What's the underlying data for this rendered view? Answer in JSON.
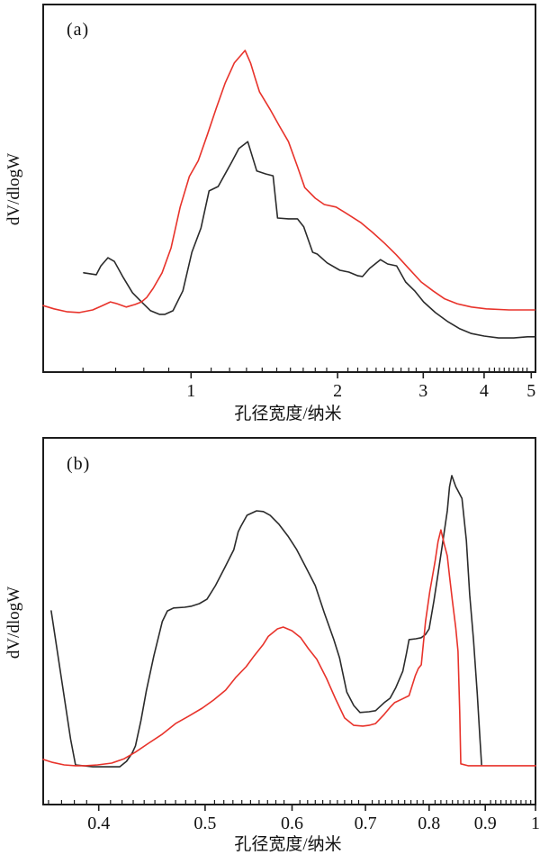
{
  "figure": {
    "background": "#ffffff",
    "frame_color": "#1c1c1c",
    "panels": [
      {
        "tag": "(a)",
        "ylabel": "dV/dlogW",
        "xlabel": "孔径宽度/纳米"
      },
      {
        "tag": "(b)",
        "ylabel": "dV/dlogW",
        "xlabel": "孔径宽度/纳米"
      }
    ]
  },
  "chart_data": [
    {
      "type": "line",
      "panel": "a",
      "title": "",
      "xlabel": "孔径宽度/纳米",
      "ylabel": "dV/dlogW",
      "x_scale": "log",
      "xlim": [
        0.497,
        5.1
      ],
      "ylim": [
        0,
        1
      ],
      "y_axis_note": "no numeric y ticks; values are fraction of panel height",
      "grid": false,
      "legend": "none",
      "x_major_ticks": [
        {
          "v": 1,
          "label": "1"
        },
        {
          "v": 2,
          "label": "2"
        },
        {
          "v": 3,
          "label": "3"
        },
        {
          "v": 4,
          "label": "4"
        },
        {
          "v": 5,
          "label": "5"
        }
      ],
      "x_minor_tick_ranges": [
        {
          "from": 0.6,
          "to": 0.9,
          "step": 0.1
        },
        {
          "from": 1.1,
          "to": 1.9,
          "step": 0.1
        },
        {
          "from": 2.1,
          "to": 2.9,
          "step": 0.1
        },
        {
          "from": 3.1,
          "to": 3.9,
          "step": 0.1
        },
        {
          "from": 4.1,
          "to": 4.9,
          "step": 0.1
        }
      ],
      "series": [
        {
          "name": "black-curve",
          "color": "#2b2b2b",
          "points": [
            [
              0.602,
              0.27
            ],
            [
              0.639,
              0.265
            ],
            [
              0.653,
              0.289
            ],
            [
              0.675,
              0.311
            ],
            [
              0.696,
              0.301
            ],
            [
              0.726,
              0.257
            ],
            [
              0.758,
              0.216
            ],
            [
              0.791,
              0.191
            ],
            [
              0.826,
              0.167
            ],
            [
              0.861,
              0.157
            ],
            [
              0.884,
              0.157
            ],
            [
              0.918,
              0.167
            ],
            [
              0.962,
              0.221
            ],
            [
              1.004,
              0.326
            ],
            [
              1.048,
              0.392
            ],
            [
              1.089,
              0.493
            ],
            [
              1.137,
              0.505
            ],
            [
              1.212,
              0.571
            ],
            [
              1.254,
              0.608
            ],
            [
              1.308,
              0.627
            ],
            [
              1.365,
              0.547
            ],
            [
              1.425,
              0.539
            ],
            [
              1.474,
              0.534
            ],
            [
              1.506,
              0.419
            ],
            [
              1.585,
              0.417
            ],
            [
              1.654,
              0.417
            ],
            [
              1.704,
              0.395
            ],
            [
              1.778,
              0.326
            ],
            [
              1.817,
              0.321
            ],
            [
              1.904,
              0.297
            ],
            [
              2.022,
              0.277
            ],
            [
              2.109,
              0.272
            ],
            [
              2.201,
              0.262
            ],
            [
              2.25,
              0.26
            ],
            [
              2.327,
              0.282
            ],
            [
              2.449,
              0.306
            ],
            [
              2.534,
              0.294
            ],
            [
              2.644,
              0.289
            ],
            [
              2.759,
              0.245
            ],
            [
              2.879,
              0.221
            ],
            [
              3.005,
              0.191
            ],
            [
              3.176,
              0.162
            ],
            [
              3.371,
              0.137
            ],
            [
              3.564,
              0.118
            ],
            [
              3.766,
              0.105
            ],
            [
              4.0,
              0.098
            ],
            [
              4.281,
              0.093
            ],
            [
              4.6,
              0.093
            ],
            [
              4.91,
              0.096
            ],
            [
              5.08,
              0.096
            ]
          ]
        },
        {
          "name": "red-curve",
          "color": "#e8332b",
          "points": [
            [
              0.497,
              0.181
            ],
            [
              0.523,
              0.172
            ],
            [
              0.557,
              0.164
            ],
            [
              0.59,
              0.162
            ],
            [
              0.628,
              0.169
            ],
            [
              0.653,
              0.179
            ],
            [
              0.683,
              0.191
            ],
            [
              0.705,
              0.186
            ],
            [
              0.736,
              0.177
            ],
            [
              0.768,
              0.184
            ],
            [
              0.791,
              0.191
            ],
            [
              0.811,
              0.203
            ],
            [
              0.836,
              0.228
            ],
            [
              0.872,
              0.27
            ],
            [
              0.91,
              0.338
            ],
            [
              0.95,
              0.449
            ],
            [
              0.992,
              0.532
            ],
            [
              1.035,
              0.575
            ],
            [
              1.08,
              0.645
            ],
            [
              1.127,
              0.718
            ],
            [
              1.176,
              0.787
            ],
            [
              1.227,
              0.841
            ],
            [
              1.291,
              0.875
            ],
            [
              1.325,
              0.841
            ],
            [
              1.355,
              0.799
            ],
            [
              1.383,
              0.762
            ],
            [
              1.456,
              0.713
            ],
            [
              1.519,
              0.669
            ],
            [
              1.585,
              0.627
            ],
            [
              1.654,
              0.559
            ],
            [
              1.712,
              0.502
            ],
            [
              1.8,
              0.473
            ],
            [
              1.878,
              0.456
            ],
            [
              1.986,
              0.449
            ],
            [
              2.09,
              0.431
            ],
            [
              2.23,
              0.407
            ],
            [
              2.36,
              0.38
            ],
            [
              2.5,
              0.35
            ],
            [
              2.64,
              0.319
            ],
            [
              2.8,
              0.282
            ],
            [
              2.97,
              0.245
            ],
            [
              3.14,
              0.221
            ],
            [
              3.32,
              0.199
            ],
            [
              3.52,
              0.186
            ],
            [
              3.77,
              0.177
            ],
            [
              4.04,
              0.172
            ],
            [
              4.5,
              0.169
            ],
            [
              5.08,
              0.169
            ]
          ]
        }
      ]
    },
    {
      "type": "line",
      "panel": "b",
      "title": "",
      "xlabel": "孔径宽度/纳米",
      "ylabel": "dV/dlogW",
      "x_scale": "log",
      "xlim": [
        0.356,
        1.0
      ],
      "ylim": [
        0,
        1
      ],
      "y_axis_note": "no numeric y ticks; values are fraction of panel height",
      "grid": false,
      "legend": "none",
      "x_major_ticks": [
        {
          "v": 0.4,
          "label": "0.4"
        },
        {
          "v": 0.5,
          "label": "0.5"
        },
        {
          "v": 0.6,
          "label": "0.6"
        },
        {
          "v": 0.7,
          "label": "0.7"
        },
        {
          "v": 0.8,
          "label": "0.8"
        },
        {
          "v": 0.9,
          "label": "0.9"
        },
        {
          "v": 1.0,
          "label": "1"
        }
      ],
      "x_minor_tick_ranges": [
        {
          "from": 0.36,
          "to": 0.39,
          "step": 0.01
        },
        {
          "from": 0.41,
          "to": 0.49,
          "step": 0.01
        },
        {
          "from": 0.51,
          "to": 0.59,
          "step": 0.01
        },
        {
          "from": 0.61,
          "to": 0.69,
          "step": 0.01
        },
        {
          "from": 0.71,
          "to": 0.79,
          "step": 0.01
        },
        {
          "from": 0.81,
          "to": 0.89,
          "step": 0.01
        },
        {
          "from": 0.91,
          "to": 0.99,
          "step": 0.01
        }
      ],
      "series": [
        {
          "name": "black-curve",
          "color": "#2b2b2b",
          "points": [
            [
              0.362,
              0.528
            ],
            [
              0.377,
              0.179
            ],
            [
              0.381,
              0.108
            ],
            [
              0.395,
              0.103
            ],
            [
              0.418,
              0.103
            ],
            [
              0.424,
              0.118
            ],
            [
              0.429,
              0.14
            ],
            [
              0.432,
              0.16
            ],
            [
              0.437,
              0.229
            ],
            [
              0.442,
              0.31
            ],
            [
              0.449,
              0.405
            ],
            [
              0.457,
              0.499
            ],
            [
              0.462,
              0.528
            ],
            [
              0.468,
              0.536
            ],
            [
              0.479,
              0.538
            ],
            [
              0.486,
              0.541
            ],
            [
              0.494,
              0.548
            ],
            [
              0.502,
              0.56
            ],
            [
              0.511,
              0.597
            ],
            [
              0.521,
              0.646
            ],
            [
              0.531,
              0.695
            ],
            [
              0.536,
              0.744
            ],
            [
              0.539,
              0.759
            ],
            [
              0.546,
              0.789
            ],
            [
              0.557,
              0.801
            ],
            [
              0.565,
              0.799
            ],
            [
              0.573,
              0.789
            ],
            [
              0.584,
              0.764
            ],
            [
              0.595,
              0.732
            ],
            [
              0.606,
              0.695
            ],
            [
              0.618,
              0.646
            ],
            [
              0.63,
              0.597
            ],
            [
              0.642,
              0.523
            ],
            [
              0.655,
              0.45
            ],
            [
              0.663,
              0.4
            ],
            [
              0.673,
              0.307
            ],
            [
              0.683,
              0.27
            ],
            [
              0.692,
              0.251
            ],
            [
              0.705,
              0.253
            ],
            [
              0.715,
              0.256
            ],
            [
              0.728,
              0.278
            ],
            [
              0.737,
              0.29
            ],
            [
              0.746,
              0.319
            ],
            [
              0.757,
              0.364
            ],
            [
              0.763,
              0.413
            ],
            [
              0.767,
              0.45
            ],
            [
              0.778,
              0.452
            ],
            [
              0.787,
              0.455
            ],
            [
              0.794,
              0.464
            ],
            [
              0.8,
              0.479
            ],
            [
              0.808,
              0.555
            ],
            [
              0.815,
              0.629
            ],
            [
              0.823,
              0.713
            ],
            [
              0.831,
              0.801
            ],
            [
              0.835,
              0.867
            ],
            [
              0.839,
              0.897
            ],
            [
              0.846,
              0.867
            ],
            [
              0.857,
              0.835
            ],
            [
              0.865,
              0.72
            ],
            [
              0.871,
              0.572
            ],
            [
              0.878,
              0.45
            ],
            [
              0.885,
              0.302
            ],
            [
              0.89,
              0.179
            ],
            [
              0.893,
              0.108
            ]
          ]
        },
        {
          "name": "red-curve",
          "color": "#e8332b",
          "points": [
            [
              0.356,
              0.123
            ],
            [
              0.363,
              0.115
            ],
            [
              0.372,
              0.108
            ],
            [
              0.381,
              0.106
            ],
            [
              0.389,
              0.106
            ],
            [
              0.399,
              0.108
            ],
            [
              0.411,
              0.113
            ],
            [
              0.422,
              0.125
            ],
            [
              0.432,
              0.143
            ],
            [
              0.444,
              0.167
            ],
            [
              0.457,
              0.192
            ],
            [
              0.47,
              0.221
            ],
            [
              0.483,
              0.241
            ],
            [
              0.497,
              0.263
            ],
            [
              0.509,
              0.285
            ],
            [
              0.522,
              0.312
            ],
            [
              0.533,
              0.346
            ],
            [
              0.545,
              0.376
            ],
            [
              0.554,
              0.405
            ],
            [
              0.565,
              0.437
            ],
            [
              0.571,
              0.459
            ],
            [
              0.582,
              0.479
            ],
            [
              0.589,
              0.484
            ],
            [
              0.6,
              0.474
            ],
            [
              0.611,
              0.455
            ],
            [
              0.621,
              0.425
            ],
            [
              0.632,
              0.396
            ],
            [
              0.645,
              0.344
            ],
            [
              0.657,
              0.29
            ],
            [
              0.67,
              0.236
            ],
            [
              0.683,
              0.216
            ],
            [
              0.696,
              0.214
            ],
            [
              0.705,
              0.216
            ],
            [
              0.715,
              0.221
            ],
            [
              0.728,
              0.246
            ],
            [
              0.737,
              0.265
            ],
            [
              0.744,
              0.278
            ],
            [
              0.755,
              0.287
            ],
            [
              0.767,
              0.297
            ],
            [
              0.777,
              0.351
            ],
            [
              0.782,
              0.371
            ],
            [
              0.787,
              0.381
            ],
            [
              0.794,
              0.499
            ],
            [
              0.801,
              0.58
            ],
            [
              0.81,
              0.663
            ],
            [
              0.815,
              0.717
            ],
            [
              0.82,
              0.749
            ],
            [
              0.826,
              0.708
            ],
            [
              0.831,
              0.678
            ],
            [
              0.835,
              0.622
            ],
            [
              0.84,
              0.555
            ],
            [
              0.846,
              0.482
            ],
            [
              0.85,
              0.418
            ],
            [
              0.853,
              0.253
            ],
            [
              0.855,
              0.111
            ],
            [
              0.868,
              0.106
            ],
            [
              0.919,
              0.106
            ],
            [
              1.0,
              0.106
            ]
          ]
        }
      ]
    }
  ]
}
